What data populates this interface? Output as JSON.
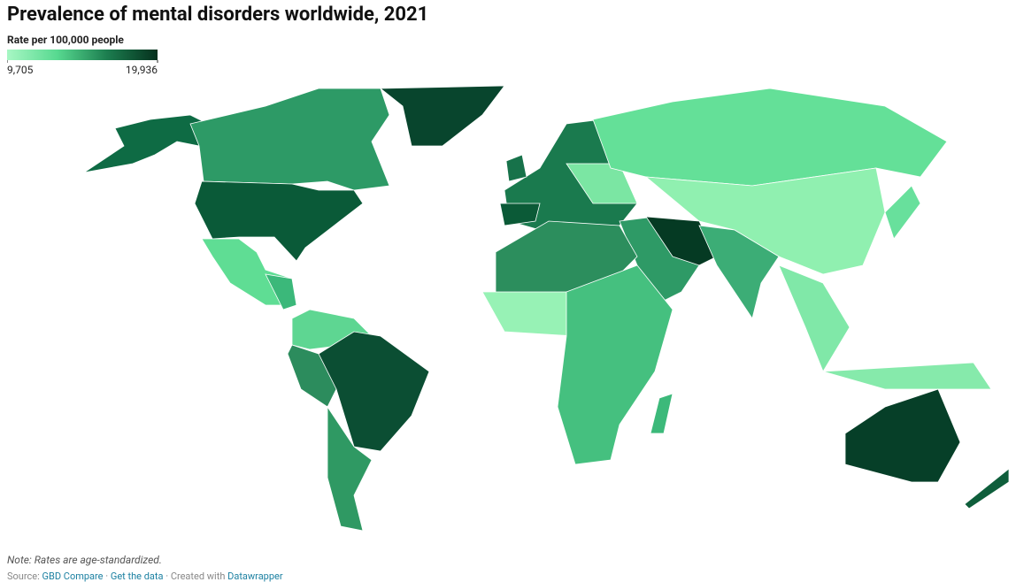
{
  "header": {
    "title": "Prevalence of mental disorders worldwide, 2021"
  },
  "legend": {
    "title": "Rate per 100,000 people",
    "min": {
      "value": 9705,
      "label": "9,705"
    },
    "max": {
      "value": 19936,
      "label": "19,936"
    },
    "colors": [
      "#a8f7c4",
      "#57d990",
      "#1c7d4f",
      "#05301d"
    ]
  },
  "footer": {
    "note": "Note: Rates are age-standardized.",
    "source_label": "Source:",
    "links": [
      "GBD Compare",
      "Get the data"
    ],
    "separator": "·",
    "created": "Created with",
    "tool": "Datawrapper"
  }
}
